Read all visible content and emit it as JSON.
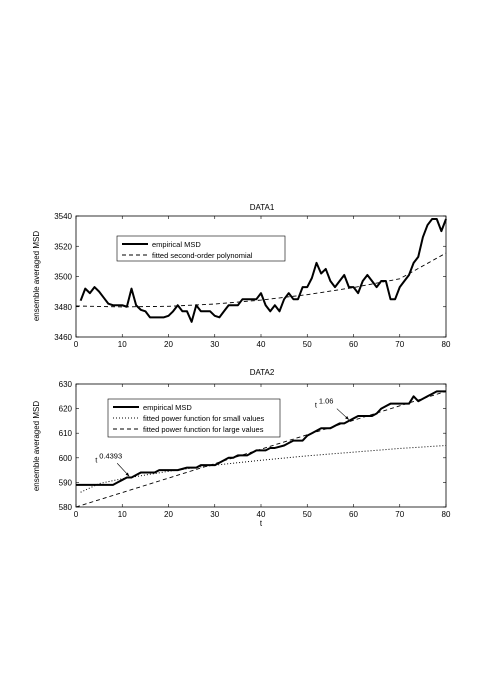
{
  "chart_data": [
    {
      "type": "line",
      "title": "DATA1",
      "xlabel": "",
      "ylabel": "ensemble averaged MSD",
      "xlim": [
        0,
        80
      ],
      "ylim": [
        3460,
        3540
      ],
      "xticks": [
        0,
        10,
        20,
        30,
        40,
        50,
        60,
        70,
        80
      ],
      "yticks": [
        3460,
        3480,
        3500,
        3520,
        3540
      ],
      "grid": false,
      "legend_position": "top-left",
      "series": [
        {
          "name": "empirical MSD",
          "style": "solid-thick",
          "color": "#000000",
          "x": [
            1,
            2,
            3,
            4,
            5,
            6,
            7,
            8,
            9,
            10,
            11,
            12,
            13,
            14,
            15,
            16,
            17,
            18,
            19,
            20,
            21,
            22,
            23,
            24,
            25,
            26,
            27,
            28,
            29,
            30,
            31,
            32,
            33,
            34,
            35,
            36,
            37,
            38,
            39,
            40,
            41,
            42,
            43,
            44,
            45,
            46,
            47,
            48,
            49,
            50,
            51,
            52,
            53,
            54,
            55,
            56,
            57,
            58,
            59,
            60,
            61,
            62,
            63,
            64,
            65,
            66,
            67,
            68,
            69,
            70,
            71,
            72,
            73,
            74,
            75,
            76,
            77,
            78,
            79,
            80
          ],
          "y": [
            3484,
            3492,
            3489,
            3493,
            3490,
            3486,
            3482,
            3481,
            3481,
            3481,
            3480,
            3492,
            3481,
            3478,
            3477,
            3473,
            3473,
            3473,
            3473,
            3474,
            3477,
            3481,
            3477,
            3477,
            3470,
            3481,
            3477,
            3477,
            3477,
            3474,
            3473,
            3477,
            3481,
            3481,
            3481,
            3485,
            3485,
            3485,
            3485,
            3489,
            3481,
            3477,
            3481,
            3477,
            3485,
            3489,
            3485,
            3485,
            3493,
            3493,
            3499,
            3509,
            3502,
            3505,
            3497,
            3493,
            3497,
            3501,
            3493,
            3493,
            3489,
            3497,
            3501,
            3497,
            3493,
            3497,
            3497,
            3485,
            3485,
            3493,
            3497,
            3501,
            3509,
            3513,
            3526,
            3534,
            3538,
            3538,
            3530,
            3538
          ]
        },
        {
          "name": "fitted second-order polynomial",
          "style": "dashed",
          "color": "#000000",
          "x": [
            0,
            10,
            20,
            30,
            40,
            50,
            60,
            70,
            80
          ],
          "y": [
            3480.5,
            3479.9,
            3480.3,
            3481.8,
            3484.4,
            3488.0,
            3492.7,
            3498.5,
            3515.5
          ]
        }
      ]
    },
    {
      "type": "line",
      "title": "DATA2",
      "xlabel": "t",
      "ylabel": "ensemble averaged MSD",
      "xlim": [
        0,
        80
      ],
      "ylim": [
        580,
        630
      ],
      "xticks": [
        0,
        10,
        20,
        30,
        40,
        50,
        60,
        70,
        80
      ],
      "yticks": [
        580,
        590,
        600,
        610,
        620,
        630
      ],
      "grid": false,
      "legend_position": "top-left",
      "series": [
        {
          "name": "empirical MSD",
          "style": "solid-thick",
          "color": "#000000",
          "x": [
            0,
            3,
            6,
            8,
            9,
            10,
            11,
            12,
            13,
            14,
            17,
            18,
            20,
            22,
            24,
            26,
            27,
            29,
            30,
            31,
            32,
            33,
            34,
            35,
            37,
            38,
            39,
            41,
            42,
            43,
            45,
            46,
            47,
            49,
            50,
            51,
            52,
            53,
            55,
            56,
            57,
            58,
            59,
            60,
            61,
            62,
            63,
            64,
            65,
            66,
            67,
            68,
            69,
            70,
            71,
            72,
            73,
            74,
            75,
            76,
            77,
            78,
            80
          ],
          "y": [
            589,
            589,
            589,
            589,
            590,
            591,
            592,
            592,
            593,
            594,
            594,
            595,
            595,
            595,
            596,
            596,
            597,
            597,
            597,
            598,
            599,
            600,
            600,
            601,
            601,
            602,
            603,
            603,
            604,
            604,
            605,
            606,
            607,
            607,
            609,
            610,
            611,
            612,
            612,
            613,
            614,
            614,
            615,
            616,
            617,
            617,
            617,
            617,
            618,
            620,
            621,
            622,
            622,
            622,
            622,
            622,
            625,
            623,
            624,
            625,
            626,
            627,
            627
          ]
        },
        {
          "name": "fitted power function for small values",
          "style": "dotted",
          "color": "#000000",
          "x": [
            1,
            5,
            10,
            15,
            20,
            25,
            30,
            40,
            50,
            60,
            70,
            80
          ],
          "y": [
            586,
            589.5,
            591.5,
            593,
            594.5,
            595.8,
            597,
            599,
            600.8,
            602.3,
            603.8,
            605
          ]
        },
        {
          "name": "fitted power function for large values",
          "style": "dashed",
          "color": "#000000",
          "x": [
            0,
            80
          ],
          "y": [
            580,
            627
          ]
        }
      ],
      "annotations": [
        {
          "label": "t",
          "superscript": "0.4393",
          "x": 11.5,
          "y": 592.5
        },
        {
          "label": "t",
          "superscript": "1.06",
          "x": 59,
          "y": 615.5
        }
      ]
    }
  ]
}
